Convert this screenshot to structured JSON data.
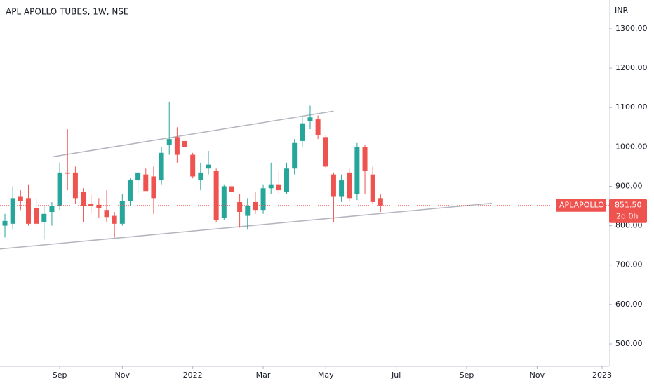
{
  "chart_data": {
    "type": "candlestick",
    "title": "APL APOLLO TUBES, 1W, NSE",
    "currency": "INR",
    "symbol": "APLAPOLLO",
    "countdown": "2d 0h",
    "last_price": 851.5,
    "last_price_label": "851.50",
    "up_color": "#26a69a",
    "down_color": "#ef5350",
    "trend_color": "#b2b5be",
    "ylim": [
      443,
      1373
    ],
    "yticks": [
      {
        "value": 500,
        "label": "500.00"
      },
      {
        "value": 600,
        "label": "600.00"
      },
      {
        "value": 700,
        "label": "700.00"
      },
      {
        "value": 800,
        "label": "800.00"
      },
      {
        "value": 900,
        "label": "900.00"
      },
      {
        "value": 1000,
        "label": "1000.00"
      },
      {
        "value": 1100,
        "label": "1100.00"
      },
      {
        "value": 1200,
        "label": "1200.00"
      },
      {
        "value": 1300,
        "label": "1300.00"
      }
    ],
    "xlim": [
      -0.63,
      77.2
    ],
    "xticks": [
      {
        "value": 7,
        "label": "Sep"
      },
      {
        "value": 15,
        "label": "Nov"
      },
      {
        "value": 24,
        "label": "2022"
      },
      {
        "value": 33,
        "label": "Mar"
      },
      {
        "value": 41,
        "label": "May"
      },
      {
        "value": 50,
        "label": "Jul"
      },
      {
        "value": 59,
        "label": "Sep"
      },
      {
        "value": 68,
        "label": "Nov"
      },
      {
        "value": 76.3,
        "label": "2023"
      }
    ],
    "open": [
      800,
      805,
      875,
      870,
      845,
      810,
      835,
      850,
      935,
      935,
      885,
      855,
      853,
      840,
      825,
      805,
      862,
      915,
      930,
      925,
      915,
      1005,
      1025,
      1015,
      980,
      915,
      945,
      940,
      820,
      900,
      860,
      825,
      860,
      840,
      895,
      905,
      885,
      945,
      1015,
      1065,
      1070,
      1025,
      930,
      875,
      935,
      880,
      1000,
      930,
      870
    ],
    "high": [
      830,
      900,
      890,
      905,
      870,
      850,
      860,
      960,
      1045,
      950,
      895,
      880,
      870,
      890,
      835,
      880,
      920,
      935,
      945,
      950,
      1000,
      1115,
      1050,
      1030,
      985,
      960,
      990,
      945,
      905,
      910,
      880,
      870,
      885,
      905,
      960,
      940,
      960,
      1020,
      1075,
      1105,
      1080,
      1030,
      935,
      930,
      945,
      1010,
      1005,
      950,
      880
    ],
    "low": [
      770,
      790,
      840,
      800,
      800,
      765,
      800,
      840,
      890,
      855,
      810,
      830,
      820,
      810,
      770,
      800,
      850,
      880,
      890,
      830,
      905,
      980,
      960,
      995,
      920,
      890,
      930,
      810,
      815,
      870,
      795,
      790,
      830,
      830,
      880,
      880,
      880,
      930,
      1000,
      1045,
      1020,
      945,
      810,
      860,
      860,
      865,
      880,
      855,
      835
    ],
    "close": [
      812,
      870,
      862,
      805,
      805,
      830,
      850,
      935,
      932,
      870,
      850,
      850,
      845,
      822,
      805,
      862,
      915,
      935,
      888,
      870,
      985,
      1020,
      980,
      1000,
      925,
      935,
      955,
      815,
      900,
      885,
      835,
      850,
      840,
      895,
      905,
      890,
      945,
      1010,
      1060,
      1075,
      1030,
      950,
      875,
      915,
      870,
      1000,
      940,
      860,
      851.5
    ],
    "trend_lines": [
      {
        "x": [
          6.1,
          42
        ],
        "y": [
          975,
          1091
        ]
      },
      {
        "x": [
          -0.63,
          62.2
        ],
        "y": [
          741,
          857
        ]
      }
    ]
  }
}
